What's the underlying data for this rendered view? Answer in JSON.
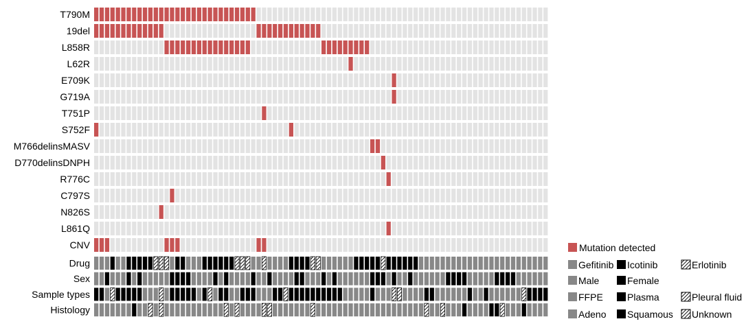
{
  "chart_data": {
    "type": "heatmap",
    "n_samples": 84,
    "colors": {
      "mutation": "#c75454",
      "background": "#e3e3e3",
      "gray": "#888888",
      "black": "#000000"
    },
    "mutation_rows": [
      {
        "label": "T790M",
        "mutated_samples": [
          0,
          1,
          2,
          3,
          4,
          5,
          6,
          7,
          8,
          9,
          10,
          11,
          12,
          13,
          14,
          15,
          16,
          17,
          18,
          19,
          20,
          21,
          22,
          23,
          24,
          25,
          26,
          27,
          28,
          29
        ]
      },
      {
        "label": "19del",
        "mutated_samples": [
          0,
          1,
          2,
          3,
          4,
          5,
          6,
          7,
          8,
          9,
          10,
          11,
          12,
          30,
          31,
          32,
          33,
          34,
          35,
          36,
          37,
          38,
          39,
          40,
          41
        ]
      },
      {
        "label": "L858R",
        "mutated_samples": [
          13,
          14,
          15,
          16,
          17,
          18,
          19,
          20,
          21,
          22,
          23,
          24,
          25,
          26,
          27,
          28,
          42,
          43,
          44,
          45,
          46,
          47,
          48,
          49,
          50
        ]
      },
      {
        "label": "L62R",
        "mutated_samples": [
          47
        ]
      },
      {
        "label": "E709K",
        "mutated_samples": [
          55
        ]
      },
      {
        "label": "G719A",
        "mutated_samples": [
          55
        ]
      },
      {
        "label": "T751P",
        "mutated_samples": [
          31
        ]
      },
      {
        "label": "S752F",
        "mutated_samples": [
          0,
          36
        ]
      },
      {
        "label": "M766delinsMASV",
        "mutated_samples": [
          51,
          52
        ]
      },
      {
        "label": "D770delinsDNPH",
        "mutated_samples": [
          53
        ]
      },
      {
        "label": "R776C",
        "mutated_samples": [
          54
        ]
      },
      {
        "label": "C797S",
        "mutated_samples": [
          14
        ]
      },
      {
        "label": "N826S",
        "mutated_samples": [
          12
        ]
      },
      {
        "label": "L861Q",
        "mutated_samples": [
          54
        ]
      },
      {
        "label": "CNV",
        "mutated_samples": [
          0,
          1,
          2,
          13,
          14,
          15,
          30,
          31
        ]
      }
    ],
    "annotation_rows": [
      {
        "label": "Drug",
        "codes": [
          1,
          1,
          1,
          2,
          1,
          1,
          2,
          2,
          2,
          2,
          2,
          3,
          3,
          3,
          1,
          2,
          2,
          1,
          1,
          1,
          2,
          2,
          2,
          2,
          2,
          2,
          3,
          3,
          3,
          1,
          1,
          3,
          1,
          1,
          1,
          1,
          2,
          2,
          2,
          2,
          3,
          3,
          1,
          1,
          1,
          1,
          1,
          1,
          2,
          2,
          2,
          2,
          2,
          3,
          2,
          2,
          2,
          2,
          2,
          2,
          1,
          1,
          1,
          1,
          1,
          1,
          1,
          1,
          1,
          1,
          1,
          1,
          1,
          1,
          1,
          1,
          1,
          1,
          1,
          1,
          1,
          1,
          1,
          1
        ]
      },
      {
        "label": "Sex",
        "codes": [
          1,
          1,
          2,
          1,
          1,
          1,
          2,
          1,
          2,
          1,
          1,
          1,
          1,
          1,
          2,
          2,
          2,
          2,
          1,
          1,
          1,
          1,
          2,
          1,
          2,
          1,
          1,
          1,
          1,
          2,
          1,
          1,
          2,
          1,
          1,
          1,
          1,
          2,
          2,
          1,
          1,
          1,
          2,
          1,
          2,
          1,
          1,
          1,
          1,
          1,
          1,
          2,
          2,
          2,
          1,
          2,
          1,
          1,
          2,
          1,
          1,
          1,
          1,
          1,
          1,
          2,
          2,
          2,
          2,
          1,
          1,
          1,
          1,
          1,
          2,
          2,
          2,
          2,
          1,
          1,
          1,
          1,
          1,
          1
        ]
      },
      {
        "label": "Sample types",
        "codes": [
          2,
          2,
          1,
          3,
          2,
          2,
          2,
          2,
          2,
          1,
          1,
          1,
          3,
          1,
          2,
          2,
          2,
          2,
          2,
          1,
          2,
          3,
          1,
          2,
          2,
          1,
          1,
          2,
          2,
          2,
          1,
          1,
          1,
          2,
          2,
          3,
          2,
          2,
          2,
          2,
          2,
          2,
          2,
          2,
          2,
          2,
          1,
          1,
          1,
          1,
          1,
          2,
          1,
          1,
          1,
          3,
          3,
          1,
          1,
          1,
          1,
          2,
          2,
          1,
          1,
          1,
          1,
          1,
          1,
          2,
          1,
          1,
          2,
          1,
          1,
          1,
          1,
          1,
          1,
          3,
          2,
          2,
          2,
          2
        ]
      },
      {
        "label": "Histology",
        "codes": [
          1,
          1,
          1,
          1,
          1,
          1,
          1,
          2,
          1,
          1,
          3,
          1,
          3,
          1,
          1,
          1,
          1,
          1,
          1,
          1,
          1,
          1,
          1,
          1,
          3,
          1,
          3,
          1,
          1,
          1,
          1,
          3,
          3,
          1,
          1,
          1,
          1,
          1,
          1,
          1,
          3,
          1,
          1,
          1,
          1,
          1,
          1,
          1,
          1,
          1,
          1,
          1,
          1,
          1,
          1,
          1,
          1,
          1,
          1,
          1,
          1,
          3,
          1,
          1,
          3,
          1,
          1,
          1,
          2,
          1,
          1,
          1,
          1,
          2,
          2,
          3,
          1,
          1,
          1,
          2,
          1,
          1,
          1,
          1
        ]
      }
    ]
  },
  "legend": {
    "mutation": {
      "label": "Mutation detected"
    },
    "groups": [
      {
        "items": [
          {
            "label": "Gefitinib",
            "style": "gray"
          },
          {
            "label": "Icotinib",
            "style": "black"
          },
          {
            "label": "Erlotinib",
            "style": "hatch"
          }
        ]
      },
      {
        "items": [
          {
            "label": "Male",
            "style": "gray"
          },
          {
            "label": "Female",
            "style": "black"
          }
        ]
      },
      {
        "items": [
          {
            "label": "FFPE",
            "style": "gray"
          },
          {
            "label": "Plasma",
            "style": "black"
          },
          {
            "label": "Pleural fluid",
            "style": "hatch"
          }
        ]
      },
      {
        "items": [
          {
            "label": "Adeno",
            "style": "gray"
          },
          {
            "label": "Squamous",
            "style": "black"
          },
          {
            "label": "Unknown",
            "style": "hatch"
          }
        ]
      }
    ]
  }
}
